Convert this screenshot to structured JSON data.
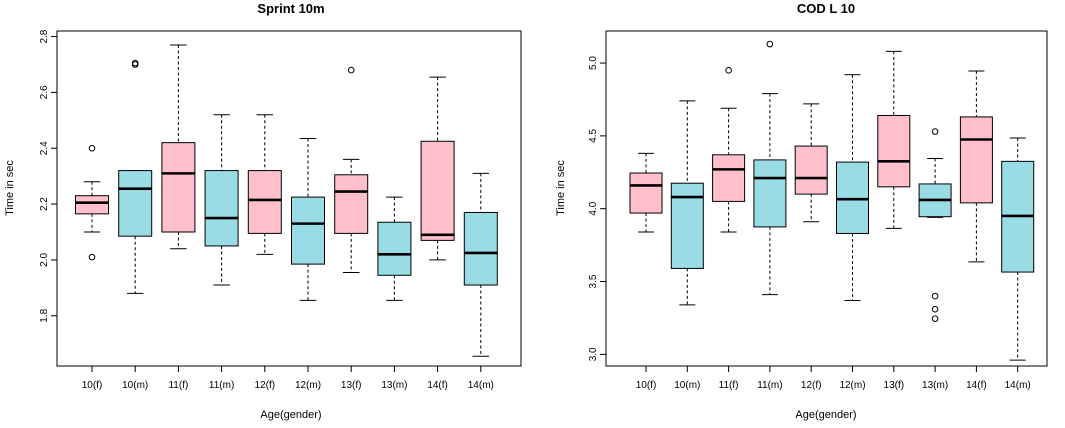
{
  "colors": {
    "female": "#FFC0CB",
    "male": "#9ADCE6",
    "axis": "#000000",
    "outlier": "#000000"
  },
  "chart_data": [
    {
      "type": "boxplot",
      "title": "Sprint 10m",
      "xlabel": "Age(gender)",
      "ylabel": "Time in sec",
      "ylim": [
        1.62,
        2.82
      ],
      "yticks": [
        1.8,
        2.0,
        2.2,
        2.4,
        2.6,
        2.8
      ],
      "ytick_labels": [
        "1.8",
        "2.0",
        "2.2",
        "2.4",
        "2.6",
        "2.8"
      ],
      "categories": [
        "10(f)",
        "10(m)",
        "11(f)",
        "11(m)",
        "12(f)",
        "12(m)",
        "13(f)",
        "13(m)",
        "14(f)",
        "14(m)"
      ],
      "groups": [
        "f",
        "m",
        "f",
        "m",
        "f",
        "m",
        "f",
        "m",
        "f",
        "m"
      ],
      "boxes": [
        {
          "min": 2.1,
          "q1": 2.165,
          "median": 2.205,
          "q3": 2.23,
          "max": 2.28,
          "outliers": [
            2.4,
            2.01
          ]
        },
        {
          "min": 1.88,
          "q1": 2.085,
          "median": 2.255,
          "q3": 2.32,
          "max": 2.32,
          "outliers": [
            2.7,
            2.705
          ]
        },
        {
          "min": 2.04,
          "q1": 2.1,
          "median": 2.31,
          "q3": 2.42,
          "max": 2.77,
          "outliers": []
        },
        {
          "min": 1.91,
          "q1": 2.05,
          "median": 2.15,
          "q3": 2.32,
          "max": 2.52,
          "outliers": []
        },
        {
          "min": 2.02,
          "q1": 2.095,
          "median": 2.215,
          "q3": 2.32,
          "max": 2.52,
          "outliers": []
        },
        {
          "min": 1.855,
          "q1": 1.985,
          "median": 2.13,
          "q3": 2.225,
          "max": 2.435,
          "outliers": []
        },
        {
          "min": 1.955,
          "q1": 2.095,
          "median": 2.245,
          "q3": 2.305,
          "max": 2.36,
          "outliers": [
            2.68
          ]
        },
        {
          "min": 1.855,
          "q1": 1.945,
          "median": 2.02,
          "q3": 2.135,
          "max": 2.225,
          "outliers": []
        },
        {
          "min": 2.0,
          "q1": 2.07,
          "median": 2.09,
          "q3": 2.425,
          "max": 2.655,
          "outliers": []
        },
        {
          "min": 1.655,
          "q1": 1.91,
          "median": 2.025,
          "q3": 2.17,
          "max": 2.31,
          "outliers": []
        }
      ]
    },
    {
      "type": "boxplot",
      "title": "COD L 10",
      "xlabel": "Age(gender)",
      "ylabel": "Time in sec",
      "ylim": [
        2.92,
        5.22
      ],
      "yticks": [
        3.0,
        3.5,
        4.0,
        4.5,
        5.0
      ],
      "ytick_labels": [
        "3.0",
        "3.5",
        "4.0",
        "4.5",
        "5.0"
      ],
      "categories": [
        "10(f)",
        "10(m)",
        "11(f)",
        "11(m)",
        "12(f)",
        "12(m)",
        "13(f)",
        "13(m)",
        "14(f)",
        "14(m)"
      ],
      "groups": [
        "f",
        "m",
        "f",
        "m",
        "f",
        "m",
        "f",
        "m",
        "f",
        "m"
      ],
      "boxes": [
        {
          "min": 3.84,
          "q1": 3.97,
          "median": 4.16,
          "q3": 4.245,
          "max": 4.38,
          "outliers": []
        },
        {
          "min": 3.34,
          "q1": 3.59,
          "median": 4.08,
          "q3": 4.175,
          "max": 4.74,
          "outliers": []
        },
        {
          "min": 3.84,
          "q1": 4.05,
          "median": 4.27,
          "q3": 4.37,
          "max": 4.69,
          "outliers": [
            4.95
          ]
        },
        {
          "min": 3.41,
          "q1": 3.875,
          "median": 4.21,
          "q3": 4.335,
          "max": 4.79,
          "outliers": [
            5.13
          ]
        },
        {
          "min": 3.91,
          "q1": 4.1,
          "median": 4.21,
          "q3": 4.43,
          "max": 4.72,
          "outliers": []
        },
        {
          "min": 3.37,
          "q1": 3.83,
          "median": 4.065,
          "q3": 4.32,
          "max": 4.92,
          "outliers": []
        },
        {
          "min": 3.865,
          "q1": 4.15,
          "median": 4.325,
          "q3": 4.64,
          "max": 5.08,
          "outliers": []
        },
        {
          "min": 3.94,
          "q1": 3.945,
          "median": 4.06,
          "q3": 4.17,
          "max": 4.345,
          "outliers": [
            4.53,
            3.4,
            3.31,
            3.245
          ]
        },
        {
          "min": 3.635,
          "q1": 4.04,
          "median": 4.475,
          "q3": 4.63,
          "max": 4.945,
          "outliers": []
        },
        {
          "min": 2.96,
          "q1": 3.565,
          "median": 3.95,
          "q3": 4.325,
          "max": 4.485,
          "outliers": []
        }
      ]
    }
  ]
}
